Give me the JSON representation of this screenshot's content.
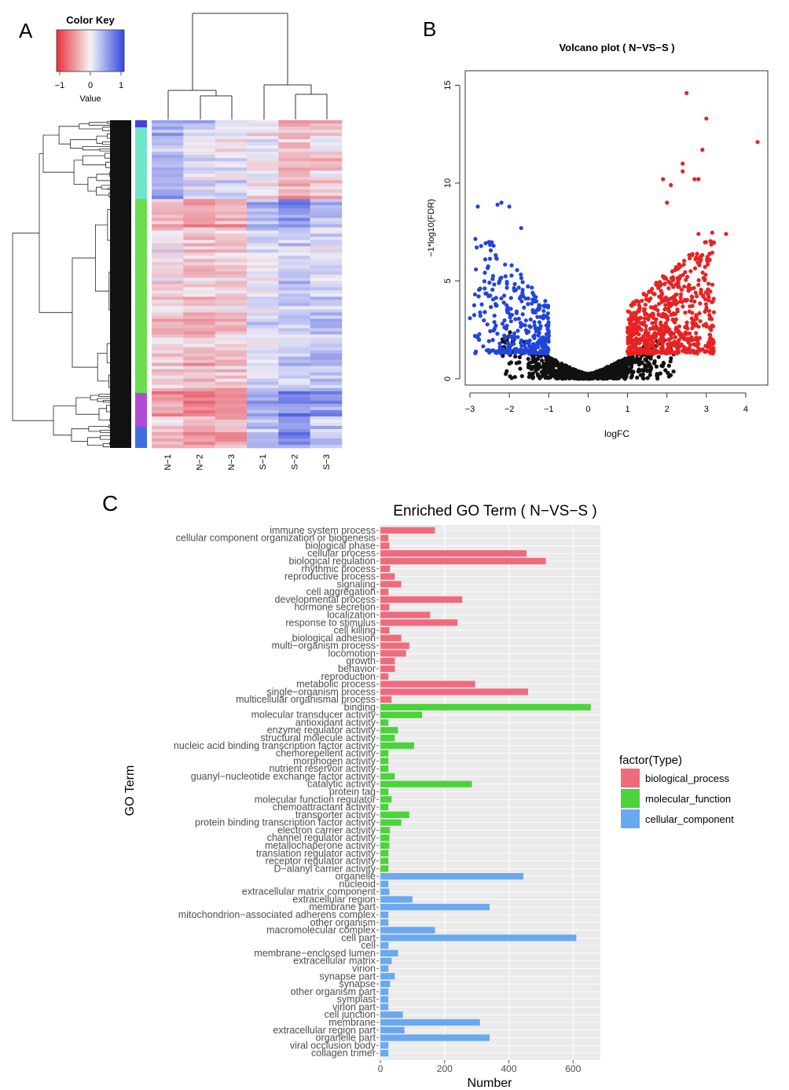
{
  "panels": {
    "a": {
      "label": "A",
      "color_key": {
        "title": "Color Key",
        "value_label": "Value",
        "ticks": [
          "−1",
          "0",
          "1"
        ],
        "low_color": "#e8303c",
        "mid_color": "#f5f5f5",
        "high_color": "#3348e0"
      },
      "columns": [
        "N−1",
        "N−2",
        "N−3",
        "S−1",
        "S−2",
        "S−3"
      ],
      "cluster_colors": [
        "#4b3fd8",
        "#6fe7c7",
        "#6cdc50",
        "#b04bd9",
        "#3d6fe0"
      ]
    },
    "b": {
      "label": "B",
      "title": "Volcano plot ( N−VS−S )",
      "xlabel": "logFC",
      "ylabel": "−1*log10(FDR)",
      "colors": {
        "down": "#2244dd",
        "up": "#e82222",
        "ns": "#111111"
      }
    },
    "c": {
      "label": "C",
      "title": "Enriched GO Term ( N−VS−S )",
      "xlabel": "Number",
      "ylabel": "GO Term",
      "legend_title": "factor(Type)",
      "legend": [
        {
          "name": "biological_process",
          "color": "#f06a7e"
        },
        {
          "name": "molecular_function",
          "color": "#4bd33a"
        },
        {
          "name": "cellular_component",
          "color": "#6aa8f0"
        }
      ]
    }
  },
  "chart_data": [
    {
      "type": "scatter",
      "title": "Volcano plot ( N−VS−S )",
      "xlabel": "logFC",
      "ylabel": "−1*log10(FDR)",
      "xlim": [
        -3,
        4.5
      ],
      "ylim": [
        0,
        15.5
      ],
      "xticks": [
        -3,
        -2,
        -1,
        0,
        1,
        2,
        3,
        4
      ],
      "yticks": [
        0,
        5,
        10,
        15
      ],
      "highlight_points": [
        {
          "x": 2.5,
          "y": 14.6
        },
        {
          "x": 3.0,
          "y": 13.3
        },
        {
          "x": 4.3,
          "y": 12.1
        },
        {
          "x": 2.9,
          "y": 11.7
        },
        {
          "x": 2.4,
          "y": 11.0
        },
        {
          "x": 2.4,
          "y": 10.6
        },
        {
          "x": 2.7,
          "y": 10.2
        },
        {
          "x": 2.8,
          "y": 10.2
        },
        {
          "x": 1.9,
          "y": 10.2
        },
        {
          "x": 2.1,
          "y": 9.9
        },
        {
          "x": 2.0,
          "y": 9.0
        },
        {
          "x": 3.5,
          "y": 7.4
        },
        {
          "x": 2.8,
          "y": 7.4
        },
        {
          "x": -2.8,
          "y": 8.8
        },
        {
          "x": -2.3,
          "y": 8.9
        },
        {
          "x": -2.2,
          "y": 9.0
        },
        {
          "x": -2.0,
          "y": 8.8
        },
        {
          "x": -1.7,
          "y": 7.7
        },
        {
          "x": -2.4,
          "y": 6.8
        },
        {
          "x": -3.0,
          "y": 3.1
        },
        {
          "x": -2.7,
          "y": 3.8
        }
      ]
    },
    {
      "type": "bar",
      "orientation": "horizontal",
      "title": "Enriched GO Term ( N−VS−S )",
      "xlabel": "Number",
      "ylabel": "GO Term",
      "xlim": [
        -5,
        685
      ],
      "xticks": [
        0,
        200,
        400,
        600
      ],
      "legend_title": "factor(Type)",
      "categories": [
        "immune system process",
        "cellular component organization or biogenesis",
        "biological phase",
        "cellular process",
        "biological regulation",
        "rhythmic process",
        "reproductive process",
        "signaling",
        "cell aggregation",
        "developmental process",
        "hormone secretion",
        "localization",
        "response to stimulus",
        "cell killing",
        "biological adhesion",
        "multi−organism process",
        "locomotion",
        "growth",
        "behavior",
        "reproduction",
        "metabolic process",
        "single−organism process",
        "multicellular organismal process",
        "binding",
        "molecular transducer activity",
        "antioxidant activity",
        "enzyme regulator activity",
        "structural molecule activity",
        "nucleic acid binding transcription factor activity",
        "chemorepellent activity",
        "morphogen activity",
        "nutrient reservoir activity",
        "guanyl−nucleotide exchange factor activity",
        "catalytic activity",
        "protein tag",
        "molecular function regulator",
        "chemoattractant activity",
        "transporter activity",
        "protein binding transcription factor activity",
        "electron carrier activity",
        "channel regulator activity",
        "metallochaperone activity",
        "translation regulator activity",
        "receptor regulator activity",
        "D−alanyl carrier activity",
        "organelle",
        "nucleoid",
        "extracellular matrix component",
        "extracellular region",
        "membrane part",
        "mitochondrion−associated adherens complex",
        "other organism",
        "macromolecular complex",
        "cell part",
        "cell",
        "membrane−enclosed lumen",
        "extracellular matrix",
        "virion",
        "synapse part",
        "synapse",
        "other organism part",
        "symplast",
        "virion part",
        "cell junction",
        "membrane",
        "extracellular region part",
        "organelle part",
        "viral occlusion body",
        "collagen trimer"
      ],
      "series": [
        {
          "name": "biological_process",
          "values": [
            170,
            25,
            28,
            455,
            515,
            30,
            45,
            65,
            25,
            255,
            28,
            155,
            240,
            28,
            65,
            90,
            80,
            45,
            45,
            25,
            295,
            460,
            35,
            null,
            null,
            null,
            null,
            null,
            null,
            null,
            null,
            null,
            null,
            null,
            null,
            null,
            null,
            null,
            null,
            null,
            null,
            null,
            null,
            null,
            null,
            null,
            null,
            null,
            null,
            null,
            null,
            null,
            null,
            null,
            null,
            null,
            null,
            null,
            null,
            null,
            null,
            null,
            null,
            null,
            null,
            null,
            null,
            null,
            null
          ]
        },
        {
          "name": "molecular_function",
          "values": [
            null,
            null,
            null,
            null,
            null,
            null,
            null,
            null,
            null,
            null,
            null,
            null,
            null,
            null,
            null,
            null,
            null,
            null,
            null,
            null,
            null,
            null,
            null,
            655,
            130,
            25,
            55,
            45,
            105,
            25,
            25,
            25,
            45,
            285,
            25,
            35,
            25,
            90,
            65,
            30,
            28,
            28,
            25,
            25,
            25,
            null,
            null,
            null,
            null,
            null,
            null,
            null,
            null,
            null,
            null,
            null,
            null,
            null,
            null,
            null,
            null,
            null,
            null,
            null,
            null,
            null,
            null,
            null,
            null
          ]
        },
        {
          "name": "cellular_component",
          "values": [
            null,
            null,
            null,
            null,
            null,
            null,
            null,
            null,
            null,
            null,
            null,
            null,
            null,
            null,
            null,
            null,
            null,
            null,
            null,
            null,
            null,
            null,
            null,
            null,
            null,
            null,
            null,
            null,
            null,
            null,
            null,
            null,
            null,
            null,
            null,
            null,
            null,
            null,
            null,
            null,
            null,
            null,
            null,
            null,
            null,
            445,
            25,
            28,
            100,
            340,
            25,
            25,
            170,
            610,
            25,
            55,
            35,
            25,
            45,
            30,
            25,
            25,
            25,
            70,
            310,
            75,
            340,
            25,
            25
          ]
        }
      ]
    }
  ]
}
